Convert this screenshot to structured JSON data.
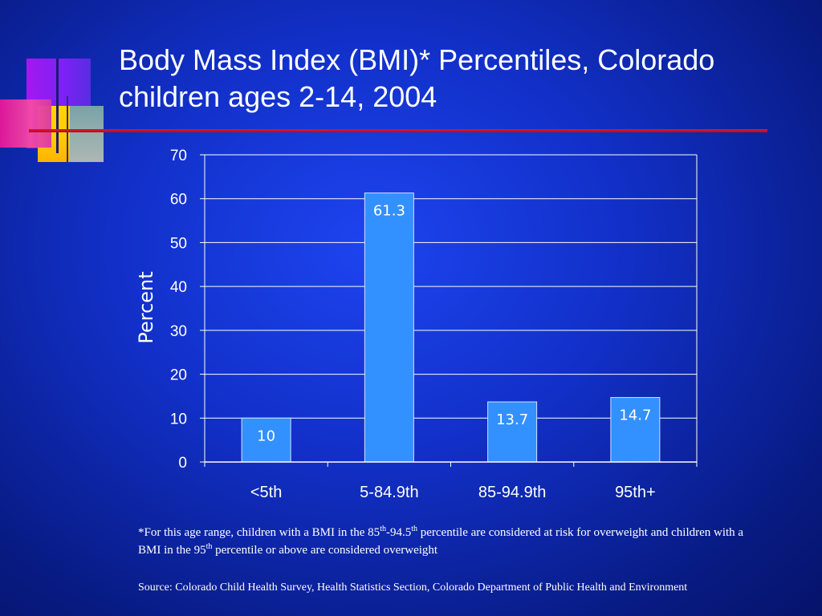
{
  "slide": {
    "title": "Body Mass Index (BMI)* Percentiles, Colorado children ages 2-14, 2004"
  },
  "footnote": {
    "part1": "*For this age range, children with a BMI in the  85",
    "sup1": "th",
    "part2": "-94.5",
    "sup2": "th",
    "part3": " percentile are considered at risk for overweight and children with a BMI in the 95",
    "sup3": "th",
    "part4": " percentile or above are considered overweight"
  },
  "source": {
    "text": "Source: Colorado Child Health Survey, Health Statistics Section, Colorado Department of Public Health and Environment"
  },
  "colors": {
    "background": "#1230c8",
    "bar_fill": "#3390ff",
    "gridline": "#ffffff",
    "title_rule": "#e0142c"
  },
  "chart_data": {
    "type": "bar",
    "title": "",
    "xlabel": "",
    "ylabel": "Percent",
    "categories": [
      "<5th",
      "5-84.9th",
      "85-94.9th",
      "95th+"
    ],
    "values": [
      10,
      61.3,
      13.7,
      14.7
    ],
    "data_labels": [
      "10",
      "61.3",
      "13.7",
      "14.7"
    ],
    "ylim": [
      0,
      70
    ],
    "yticks": [
      0,
      10,
      20,
      30,
      40,
      50,
      60,
      70
    ],
    "grid": true,
    "legend": "none"
  }
}
